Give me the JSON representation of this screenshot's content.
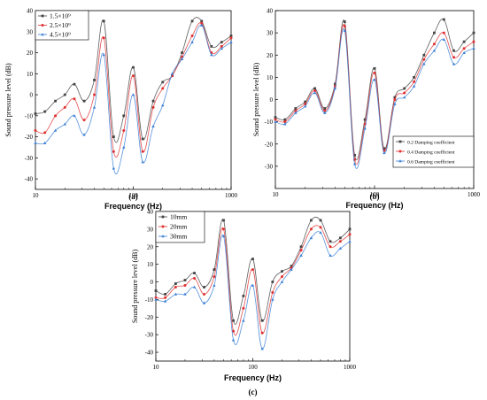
{
  "chart_data": [
    {
      "type": "line",
      "panel_label": "(a)",
      "xlabel": "Frequency  (Hz)",
      "ylabel": "Sound pressure level  (dB)",
      "xscale": "log",
      "xlim": [
        10,
        1000
      ],
      "ylim": [
        -45,
        40
      ],
      "yticks": [
        "-40",
        "-30",
        "-20",
        "-10",
        "0",
        "10",
        "20",
        "30",
        "40"
      ],
      "xticks": [
        "10",
        "100",
        "1000"
      ],
      "legend_position": "top-left",
      "colors": [
        "#444444",
        "#e03030",
        "#3a7fd5"
      ],
      "series": [
        {
          "name": "1.5×10⁹",
          "x": [
            10,
            12.5,
            16,
            20,
            25,
            31.5,
            40,
            50,
            63,
            80,
            100,
            125,
            160,
            200,
            250,
            315,
            400,
            500,
            630,
            800,
            1000
          ],
          "values": [
            -9,
            -8,
            -3,
            0,
            5,
            -3,
            7,
            35,
            -20,
            -10,
            13,
            -21,
            -3,
            6,
            9,
            20,
            35,
            35,
            23,
            25,
            28
          ]
        },
        {
          "name": "2.5×10⁹",
          "x": [
            10,
            12.5,
            16,
            20,
            25,
            31.5,
            40,
            50,
            63,
            80,
            100,
            125,
            160,
            200,
            250,
            315,
            400,
            500,
            630,
            800,
            1000
          ],
          "values": [
            -17,
            -18,
            -10,
            -6,
            -2,
            -12,
            0,
            27,
            -27,
            -17,
            9,
            -27,
            -6,
            3,
            9,
            18,
            28,
            34,
            20,
            23,
            27
          ]
        },
        {
          "name": "4.5×10⁹",
          "x": [
            10,
            12.5,
            16,
            20,
            25,
            31.5,
            40,
            50,
            63,
            80,
            100,
            125,
            160,
            200,
            250,
            315,
            400,
            500,
            630,
            800,
            1000
          ],
          "values": [
            -23,
            -23,
            -17,
            -14,
            -10,
            -19,
            -6,
            19,
            -35,
            -25,
            0,
            -32,
            -15,
            -5,
            10,
            17,
            25,
            33,
            19,
            22,
            25
          ]
        }
      ]
    },
    {
      "type": "line",
      "panel_label": "(b)",
      "xlabel": "Frequency  (Hz)",
      "ylabel": "Sound pressure level  (dB)",
      "xscale": "log",
      "xlim": [
        10,
        1000
      ],
      "ylim": [
        -40,
        40
      ],
      "yticks": [
        "-30",
        "-20",
        "-10",
        "0",
        "10",
        "20",
        "30",
        "40"
      ],
      "xticks": [
        "10",
        "100",
        "1000"
      ],
      "legend_position": "bottom-right",
      "colors": [
        "#444444",
        "#e03030",
        "#3a7fd5"
      ],
      "series": [
        {
          "name": "0.2 Damping coefficient",
          "x": [
            10,
            12.5,
            16,
            20,
            25,
            31.5,
            40,
            50,
            63,
            80,
            100,
            125,
            160,
            200,
            250,
            315,
            400,
            500,
            630,
            800,
            1000
          ],
          "values": [
            -8,
            -9,
            -4,
            -1,
            5,
            -4,
            7,
            35,
            -25,
            -9,
            14,
            -22,
            1,
            5,
            10,
            20,
            30,
            36,
            22,
            26,
            30
          ]
        },
        {
          "name": "0.4 Damping coefficient",
          "x": [
            10,
            12.5,
            16,
            20,
            25,
            31.5,
            40,
            50,
            63,
            80,
            100,
            125,
            160,
            200,
            250,
            315,
            400,
            500,
            630,
            800,
            1000
          ],
          "values": [
            -9,
            -10,
            -5,
            -2,
            4,
            -5,
            6,
            33,
            -27,
            -11,
            12,
            -23,
            0,
            3,
            8,
            18,
            25,
            30,
            19,
            23,
            26
          ]
        },
        {
          "name": "0.6 Damping coefficient",
          "x": [
            10,
            12.5,
            16,
            20,
            25,
            31.5,
            40,
            50,
            63,
            80,
            100,
            125,
            160,
            200,
            250,
            315,
            400,
            500,
            630,
            800,
            1000
          ],
          "values": [
            -10,
            -11,
            -6,
            -3,
            3,
            -6,
            5,
            31,
            -29,
            -13,
            9,
            -24,
            -2,
            1,
            6,
            16,
            22,
            27,
            16,
            21,
            23
          ]
        }
      ]
    },
    {
      "type": "line",
      "panel_label": "(c)",
      "xlabel": "Frequency  (Hz)",
      "ylabel": "Sound pressure level  (dB)",
      "xscale": "log",
      "xlim": [
        10,
        1000
      ],
      "ylim": [
        -45,
        40
      ],
      "yticks": [
        "-40",
        "-30",
        "-20",
        "-10",
        "0",
        "10",
        "20",
        "30",
        "40"
      ],
      "xticks": [
        "10",
        "100",
        "1000"
      ],
      "legend_position": "top-left",
      "colors": [
        "#444444",
        "#e03030",
        "#3a7fd5"
      ],
      "series": [
        {
          "name": "10mm",
          "x": [
            10,
            12.5,
            16,
            20,
            25,
            31.5,
            40,
            50,
            63,
            80,
            100,
            125,
            160,
            200,
            250,
            315,
            400,
            500,
            630,
            800,
            1000
          ],
          "values": [
            -5,
            -7,
            -1,
            1,
            5,
            -3,
            7,
            35,
            -22,
            -8,
            13,
            -22,
            0,
            6,
            9,
            20,
            35,
            35,
            23,
            25,
            30
          ]
        },
        {
          "name": "20mm",
          "x": [
            10,
            12.5,
            16,
            20,
            25,
            31.5,
            40,
            50,
            63,
            80,
            100,
            125,
            160,
            200,
            250,
            315,
            400,
            500,
            630,
            800,
            1000
          ],
          "values": [
            -9,
            -9,
            -3,
            -2,
            2,
            -7,
            3,
            30,
            -28,
            -15,
            7,
            -29,
            -6,
            3,
            8,
            18,
            30,
            31,
            20,
            23,
            27
          ]
        },
        {
          "name": "30mm",
          "x": [
            10,
            12.5,
            16,
            20,
            25,
            31.5,
            40,
            50,
            63,
            80,
            100,
            125,
            160,
            200,
            250,
            315,
            400,
            500,
            630,
            800,
            1000
          ],
          "values": [
            -10,
            -11,
            -7,
            -7,
            -3,
            -12,
            -2,
            26,
            -33,
            -22,
            -2,
            -38,
            -10,
            0,
            7,
            15,
            25,
            28,
            15,
            19,
            23
          ]
        }
      ]
    }
  ]
}
